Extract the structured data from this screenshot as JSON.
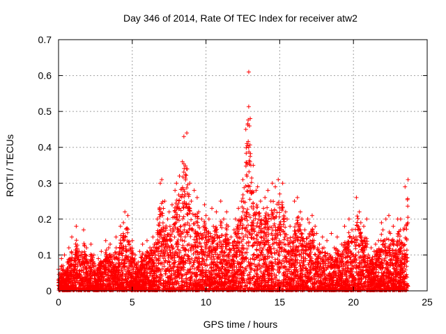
{
  "chart_data": {
    "type": "scatter",
    "title": "Day 346 of 2014, Rate Of TEC Index for receiver atw2",
    "xlabel": "GPS time / hours",
    "ylabel": "ROTI / TECUs",
    "xlim": [
      0,
      25
    ],
    "ylim": [
      0,
      0.7
    ],
    "xticks": [
      "0",
      "5",
      "10",
      "15",
      "20",
      "25"
    ],
    "yticks": [
      "0",
      "0.1",
      "0.2",
      "0.3",
      "0.4",
      "0.5",
      "0.6",
      "0.7"
    ],
    "grid": true,
    "marker": "+",
    "color": "#ff0000",
    "series": [
      {
        "x": [
          0.0,
          0.1,
          0.2,
          0.3,
          0.4,
          0.5,
          0.6,
          0.7,
          0.8,
          0.9,
          1.0,
          1.2,
          1.4,
          1.5,
          1.7,
          1.9,
          2.0,
          2.2,
          2.4,
          2.5,
          2.7,
          2.9,
          3.0,
          3.2,
          3.4,
          3.5,
          3.7,
          3.9,
          4.0,
          4.2,
          4.4,
          4.5,
          4.7,
          4.9,
          5.0,
          5.2,
          5.4,
          5.5,
          5.7,
          5.9,
          6.0,
          6.2,
          6.4,
          6.5,
          6.7,
          6.9,
          7.0,
          7.2,
          7.4,
          7.5,
          7.7,
          7.9,
          8.0,
          8.2,
          8.4,
          8.5,
          8.7,
          8.9,
          9.0,
          9.2,
          9.4,
          9.5,
          9.7,
          9.9,
          10.0,
          10.2,
          10.4,
          10.5,
          10.7,
          10.9,
          11.0,
          11.2,
          11.4,
          11.5,
          11.7,
          11.9,
          12.0,
          12.2,
          12.4,
          12.5,
          12.7,
          12.9,
          13.0,
          13.2,
          13.4,
          13.5,
          13.7,
          13.9,
          14.0,
          14.2,
          14.4,
          14.5,
          14.7,
          14.9,
          15.0,
          15.2,
          15.4,
          15.5,
          15.7,
          15.9,
          16.0,
          16.2,
          16.4,
          16.5,
          16.7,
          16.9,
          17.0,
          17.2,
          17.4,
          17.5,
          17.7,
          17.9,
          18.0,
          18.2,
          18.4,
          18.5,
          18.7,
          18.9,
          19.0,
          19.2,
          19.4,
          19.5,
          19.7,
          19.9,
          20.0,
          20.2,
          20.4,
          20.5,
          20.7,
          20.9,
          21.0,
          21.2,
          21.4,
          21.5,
          21.7,
          21.9,
          22.0,
          22.2,
          22.4,
          22.5,
          22.7,
          22.9,
          23.0,
          23.2,
          23.4,
          23.5,
          23.7
        ],
        "y": [
          0.06,
          0.05,
          0.09,
          0.07,
          0.1,
          0.05,
          0.08,
          0.12,
          0.09,
          0.15,
          0.07,
          0.18,
          0.11,
          0.1,
          0.17,
          0.12,
          0.08,
          0.13,
          0.1,
          0.07,
          0.09,
          0.11,
          0.08,
          0.14,
          0.12,
          0.13,
          0.1,
          0.15,
          0.09,
          0.18,
          0.19,
          0.22,
          0.21,
          0.12,
          0.14,
          0.1,
          0.08,
          0.11,
          0.13,
          0.1,
          0.14,
          0.12,
          0.15,
          0.13,
          0.2,
          0.3,
          0.31,
          0.25,
          0.2,
          0.22,
          0.24,
          0.28,
          0.3,
          0.32,
          0.36,
          0.43,
          0.44,
          0.3,
          0.25,
          0.28,
          0.26,
          0.22,
          0.2,
          0.24,
          0.21,
          0.2,
          0.23,
          0.18,
          0.22,
          0.15,
          0.25,
          0.2,
          0.22,
          0.18,
          0.15,
          0.17,
          0.2,
          0.23,
          0.25,
          0.31,
          0.45,
          0.61,
          0.48,
          0.35,
          0.28,
          0.29,
          0.25,
          0.23,
          0.26,
          0.28,
          0.25,
          0.3,
          0.29,
          0.31,
          0.27,
          0.3,
          0.22,
          0.2,
          0.18,
          0.15,
          0.25,
          0.26,
          0.22,
          0.2,
          0.17,
          0.2,
          0.19,
          0.21,
          0.18,
          0.16,
          0.13,
          0.15,
          0.12,
          0.14,
          0.1,
          0.16,
          0.12,
          0.15,
          0.11,
          0.13,
          0.18,
          0.12,
          0.2,
          0.17,
          0.15,
          0.26,
          0.22,
          0.19,
          0.18,
          0.2,
          0.1,
          0.12,
          0.11,
          0.13,
          0.14,
          0.19,
          0.17,
          0.2,
          0.21,
          0.16,
          0.18,
          0.13,
          0.2,
          0.2,
          0.17,
          0.29,
          0.31
        ]
      }
    ]
  }
}
